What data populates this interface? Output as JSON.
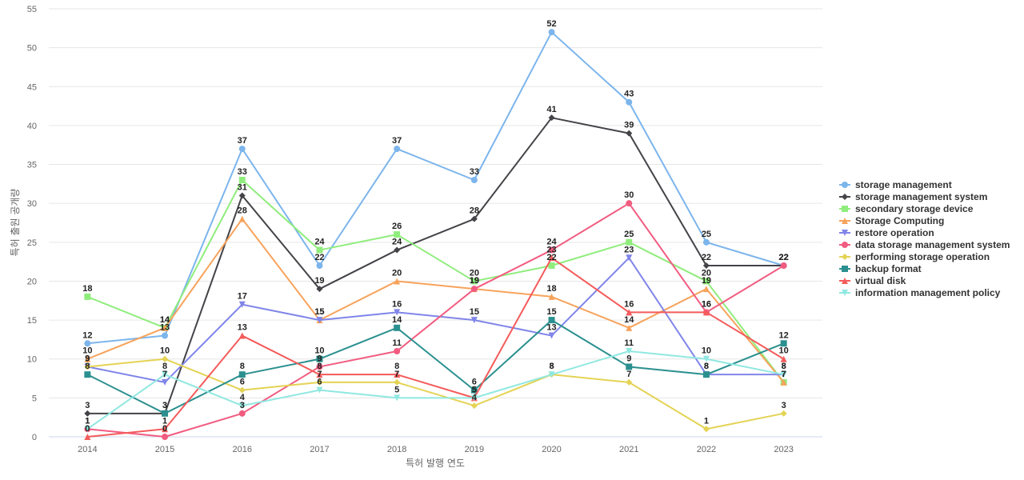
{
  "chart_data": {
    "type": "line",
    "title": "",
    "xlabel": "특허 발행 연도",
    "ylabel": "특허 출원 공개량",
    "ylim": [
      0,
      55
    ],
    "yticks": [
      0,
      5,
      10,
      15,
      20,
      25,
      30,
      35,
      40,
      45,
      50,
      55
    ],
    "grid": true,
    "legend_position": "right",
    "categories": [
      "2014",
      "2015",
      "2016",
      "2017",
      "2018",
      "2019",
      "2020",
      "2021",
      "2022",
      "2023"
    ],
    "series": [
      {
        "name": "storage management",
        "color": "#7cb5ec",
        "marker": "circle",
        "values": [
          12,
          13,
          37,
          22,
          37,
          33,
          52,
          43,
          25,
          22
        ]
      },
      {
        "name": "storage management system",
        "color": "#434348",
        "marker": "diamond",
        "values": [
          3,
          3,
          31,
          19,
          24,
          28,
          41,
          39,
          22,
          22
        ]
      },
      {
        "name": "secondary storage device",
        "color": "#90ed7d",
        "marker": "square",
        "values": [
          18,
          14,
          33,
          24,
          26,
          20,
          22,
          25,
          20,
          7
        ]
      },
      {
        "name": "Storage Computing",
        "color": "#f7a35c",
        "marker": "triangle",
        "values": [
          10,
          14,
          28,
          15,
          20,
          19,
          18,
          14,
          19,
          7
        ]
      },
      {
        "name": "restore operation",
        "color": "#8085e9",
        "marker": "triangle-down",
        "values": [
          9,
          7,
          17,
          15,
          16,
          15,
          13,
          23,
          8,
          8
        ]
      },
      {
        "name": "data storage management system",
        "color": "#f15c80",
        "marker": "circle",
        "values": [
          1,
          0,
          3,
          9,
          11,
          19,
          24,
          30,
          16,
          22
        ]
      },
      {
        "name": "performing storage operation",
        "color": "#e4d354",
        "marker": "diamond",
        "values": [
          9,
          10,
          6,
          7,
          7,
          4,
          8,
          7,
          1,
          3
        ]
      },
      {
        "name": "backup format",
        "color": "#2b908f",
        "marker": "square",
        "values": [
          8,
          3,
          8,
          10,
          14,
          6,
          15,
          9,
          8,
          12
        ]
      },
      {
        "name": "virtual disk",
        "color": "#f45b5b",
        "marker": "triangle",
        "values": [
          0,
          1,
          13,
          8,
          8,
          5,
          23,
          16,
          16,
          10
        ]
      },
      {
        "name": "information management policy",
        "color": "#91e8e1",
        "marker": "triangle-down",
        "values": [
          1,
          8,
          4,
          6,
          5,
          5,
          8,
          11,
          10,
          8
        ]
      }
    ]
  }
}
